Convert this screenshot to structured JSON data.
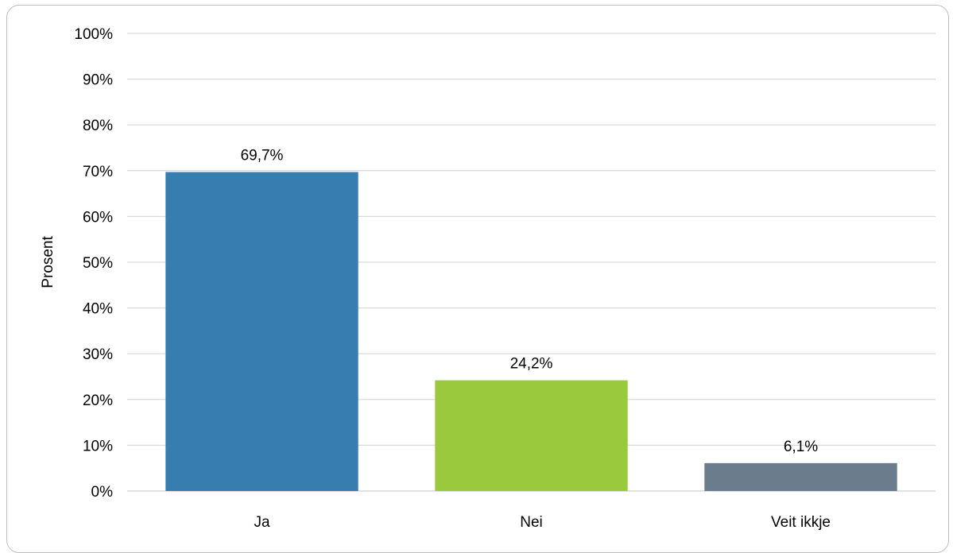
{
  "chart_data": {
    "type": "bar",
    "categories": [
      "Ja",
      "Nei",
      "Veit ikkje"
    ],
    "values": [
      69.7,
      24.2,
      6.1
    ],
    "data_labels": [
      "69,7%",
      "24,2%",
      "6,1%"
    ],
    "colors": [
      "#377db0",
      "#9bc93d",
      "#6b7c8d"
    ],
    "title": "",
    "xlabel": "",
    "ylabel": "Prosent",
    "ylim": [
      0,
      100
    ],
    "y_ticks": [
      "0%",
      "10%",
      "20%",
      "30%",
      "40%",
      "50%",
      "60%",
      "70%",
      "80%",
      "90%",
      "100%"
    ],
    "grid": true,
    "gridline_color": "#d9d9d9"
  }
}
